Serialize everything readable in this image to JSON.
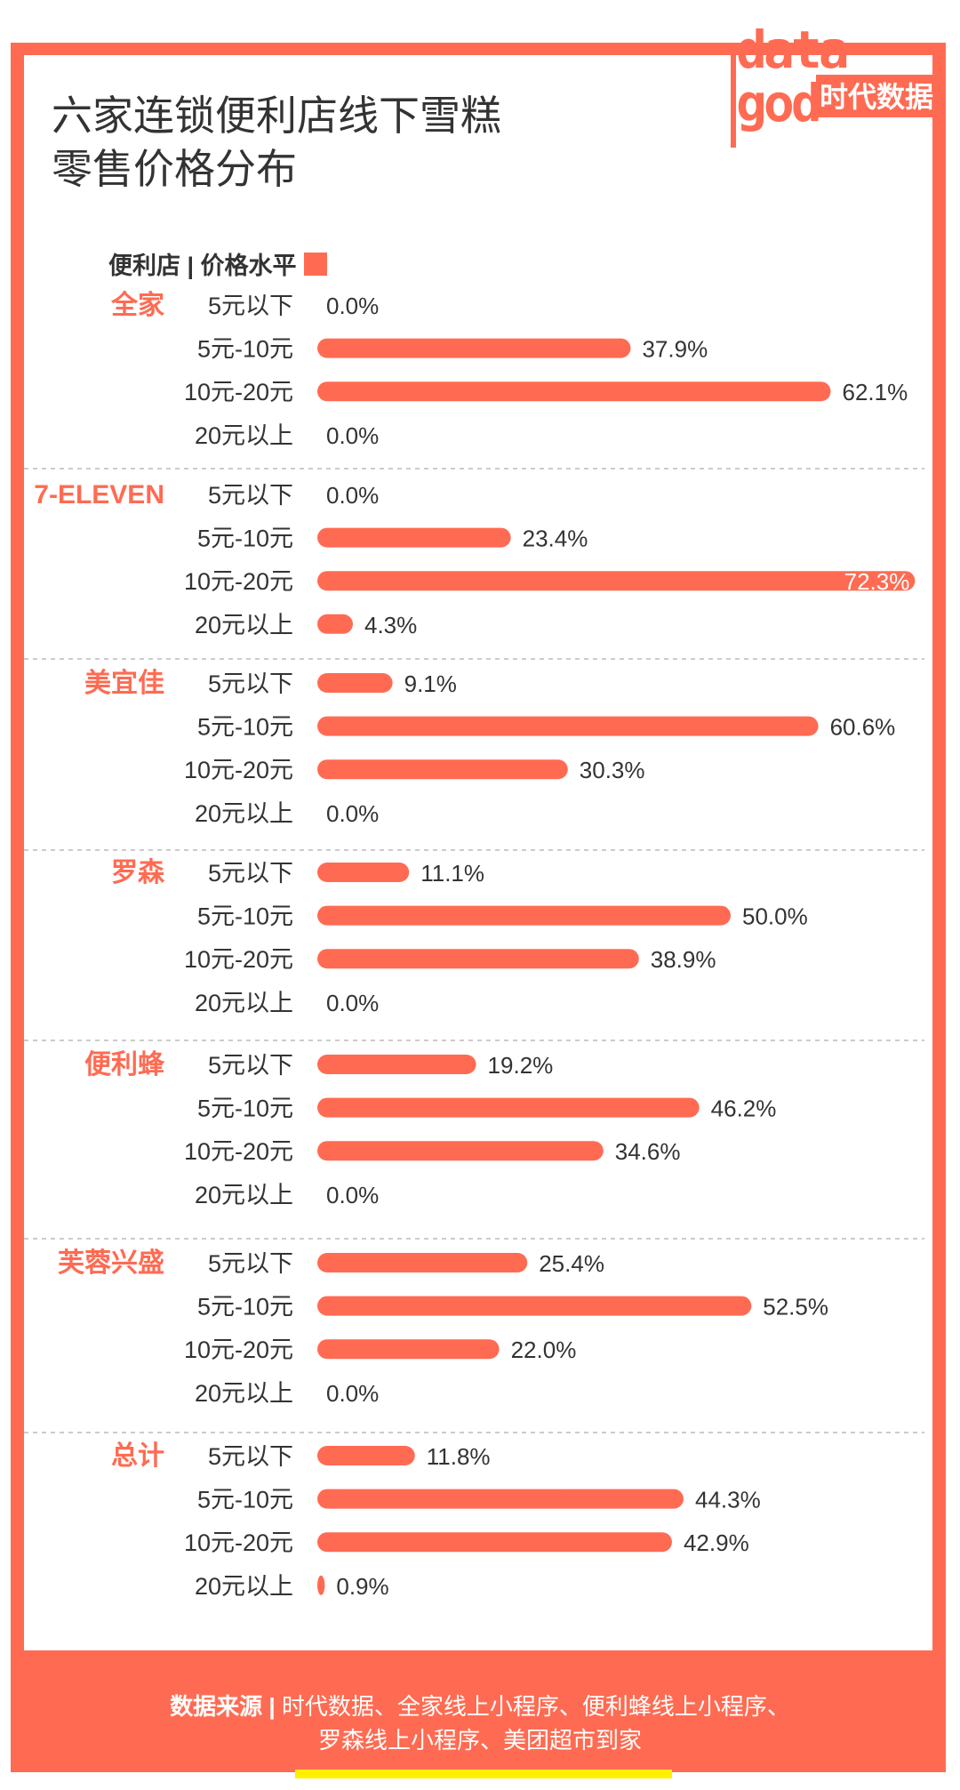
{
  "title_lines": [
    "六家连锁便利店线下雪糕",
    "零售价格分布"
  ],
  "legend": {
    "label": "便利店 | 价格水平"
  },
  "logo": {
    "text_top": "data",
    "text_bottom": "god",
    "brand": "时代数据"
  },
  "source": {
    "lead": "数据来源 |",
    "line1": "时代数据、全家线上小程序、便利蜂线上小程序、",
    "line2": "罗森线上小程序、美团超市到家"
  },
  "colors": {
    "accent": "#FF6B52",
    "highlight": "#FFF000",
    "text": "#333333"
  },
  "chart_data": {
    "type": "bar",
    "orientation": "horizontal",
    "title": "六家连锁便利店线下雪糕零售价格分布",
    "categories": [
      "5元以下",
      "5元-10元",
      "10元-20元",
      "20元以上"
    ],
    "unit": "%",
    "groups": [
      {
        "store": "全家",
        "values": [
          0.0,
          37.9,
          62.1,
          0.0
        ],
        "labels": [
          "0.0%",
          "37.9%",
          "62.1%",
          "0.0%"
        ]
      },
      {
        "store": "7-ELEVEN",
        "values": [
          0.0,
          23.4,
          72.3,
          4.3
        ],
        "labels": [
          "0.0%",
          "23.4%",
          "72.3%",
          "4.3%"
        ]
      },
      {
        "store": "美宜佳",
        "values": [
          9.1,
          60.6,
          30.3,
          0.0
        ],
        "labels": [
          "9.1%",
          "60.6%",
          "30.3%",
          "0.0%"
        ]
      },
      {
        "store": "罗森",
        "values": [
          11.1,
          50.0,
          38.9,
          0.0
        ],
        "labels": [
          "11.1%",
          "50.0%",
          "38.9%",
          "0.0%"
        ]
      },
      {
        "store": "便利蜂",
        "values": [
          19.2,
          46.2,
          34.6,
          0.0
        ],
        "labels": [
          "19.2%",
          "46.2%",
          "34.6%",
          "0.0%"
        ]
      },
      {
        "store": "芙蓉兴盛",
        "values": [
          25.4,
          52.5,
          22.0,
          0.0
        ],
        "labels": [
          "25.4%",
          "52.5%",
          "22.0%",
          "0.0%"
        ]
      },
      {
        "store": "总计",
        "values": [
          11.8,
          44.3,
          42.9,
          0.9
        ],
        "labels": [
          "11.8%",
          "44.3%",
          "42.9%",
          "0.9%"
        ]
      }
    ]
  }
}
